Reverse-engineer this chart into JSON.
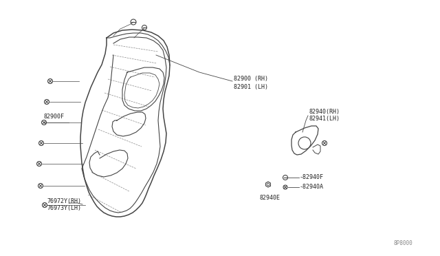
{
  "bg_color": "#ffffff",
  "line_color": "#444444",
  "text_color": "#222222",
  "fig_width": 6.4,
  "fig_height": 3.72,
  "dpi": 100,
  "watermark": "8P8000",
  "label_82900": "82900 (RH)",
  "label_82901": "82901 (LH)",
  "label_82900F": "82900F",
  "label_82940rh": "82940(RH)",
  "label_82941lh": "82941(LH)",
  "label_82940F": "-82940F",
  "label_82940A": "-82940A",
  "label_82940E": "82940E",
  "label_76972": "76972Y(RH)",
  "label_76973": "76973Y(LH)",
  "fontsize": 6.0
}
